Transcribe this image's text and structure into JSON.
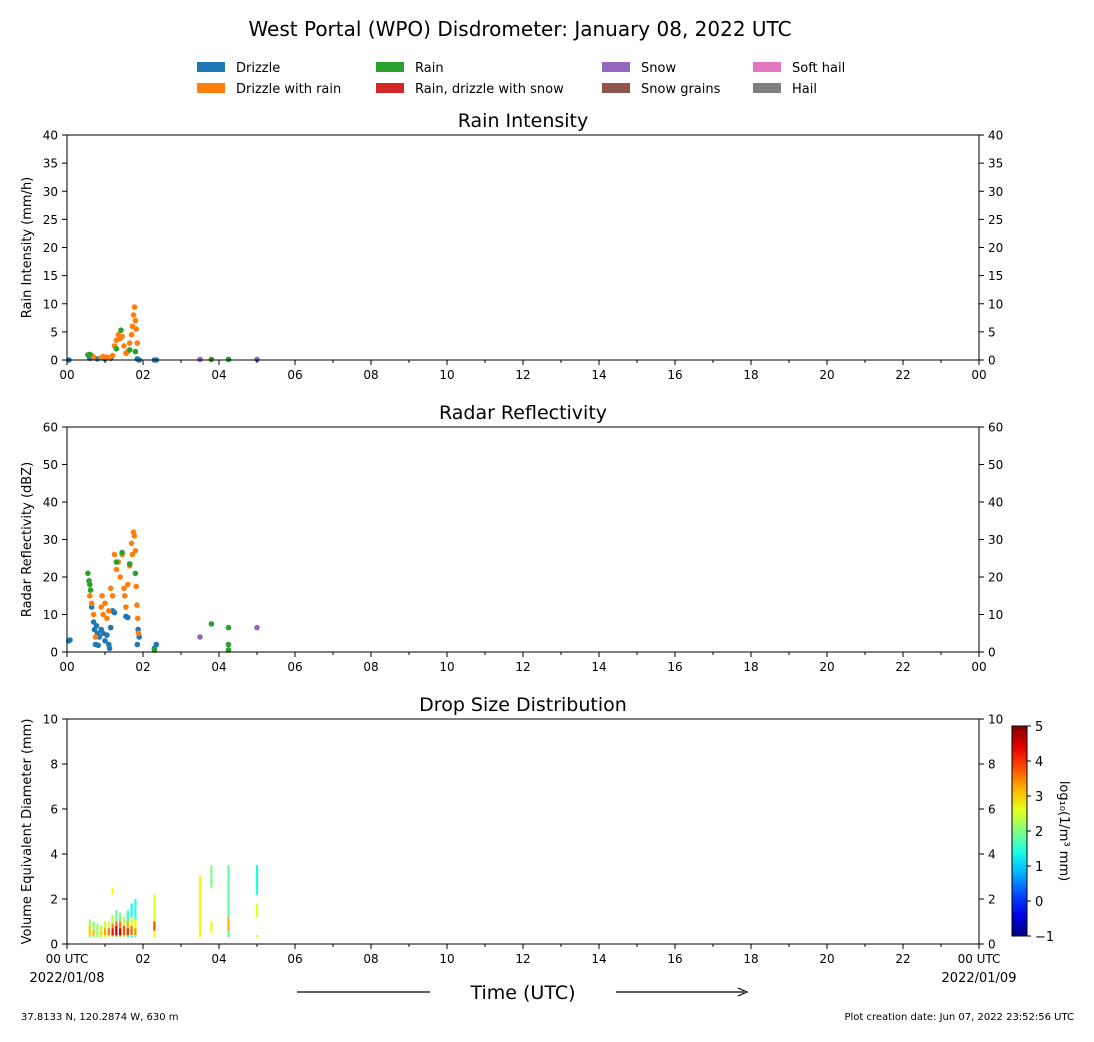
{
  "figure": {
    "title": "West Portal (WPO) Disdrometer: January 08, 2022 UTC",
    "xlabel": "Time (UTC)",
    "footer_left": "37.8133 N, 120.2874 W, 630 m",
    "footer_right": "Plot creation date: Jun 07, 2022 23:52:56 UTC",
    "start_tick": "00 UTC",
    "start_date": "2022/01/08",
    "end_tick": "00 UTC",
    "end_date": "2022/01/09"
  },
  "legend": {
    "placement": "top-center",
    "items": [
      {
        "label": "Drizzle",
        "color": "#1f77b4"
      },
      {
        "label": "Drizzle with rain",
        "color": "#ff7f0e"
      },
      {
        "label": "Rain",
        "color": "#2ca02c"
      },
      {
        "label": "Rain, drizzle with snow",
        "color": "#d62728"
      },
      {
        "label": "Snow",
        "color": "#9467bd"
      },
      {
        "label": "Snow grains",
        "color": "#8c564b"
      },
      {
        "label": "Soft hail",
        "color": "#e377c2"
      },
      {
        "label": "Hail",
        "color": "#7f7f7f"
      }
    ]
  },
  "chart_data": [
    {
      "type": "scatter",
      "title": "Rain Intensity",
      "xlabel": "",
      "ylabel": "Rain Intensity (mm/h)",
      "xlim": [
        0,
        24
      ],
      "ylim": [
        0,
        40
      ],
      "xticks": [
        "00",
        "02",
        "04",
        "06",
        "08",
        "10",
        "12",
        "14",
        "16",
        "18",
        "20",
        "22",
        "00"
      ],
      "yticks": [
        "0",
        "5",
        "10",
        "15",
        "20",
        "25",
        "30",
        "35",
        "40"
      ],
      "grid": false,
      "series": [
        {
          "name": "Drizzle",
          "color": "#1f77b4",
          "points": [
            [
              0.05,
              0
            ],
            [
              0.6,
              0.3
            ],
            [
              0.8,
              0.2
            ],
            [
              1.0,
              0.2
            ],
            [
              1.15,
              0.3
            ],
            [
              1.85,
              0.2
            ],
            [
              1.9,
              0
            ],
            [
              2.3,
              0
            ],
            [
              2.35,
              0
            ]
          ]
        },
        {
          "name": "Drizzle with rain",
          "color": "#ff7f0e",
          "points": [
            [
              0.65,
              0.8
            ],
            [
              0.7,
              0.5
            ],
            [
              0.9,
              0.4
            ],
            [
              0.95,
              0.6
            ],
            [
              1.05,
              0.5
            ],
            [
              1.1,
              0.4
            ],
            [
              1.2,
              0.8
            ],
            [
              1.25,
              2.5
            ],
            [
              1.3,
              3.5
            ],
            [
              1.35,
              4.5
            ],
            [
              1.4,
              3.8
            ],
            [
              1.45,
              4.2
            ],
            [
              1.5,
              2.5
            ],
            [
              1.55,
              1.2
            ],
            [
              1.6,
              1.5
            ],
            [
              1.65,
              3
            ],
            [
              1.7,
              4.5
            ],
            [
              1.72,
              6
            ],
            [
              1.75,
              8
            ],
            [
              1.78,
              9.4
            ],
            [
              1.8,
              7
            ],
            [
              1.82,
              5.5
            ],
            [
              1.85,
              3
            ]
          ]
        },
        {
          "name": "Rain",
          "color": "#2ca02c",
          "points": [
            [
              0.55,
              0.9
            ],
            [
              0.6,
              1.0
            ],
            [
              1.3,
              2.0
            ],
            [
              1.42,
              5.3
            ],
            [
              1.65,
              1.8
            ],
            [
              1.8,
              1.5
            ],
            [
              3.8,
              0.1
            ],
            [
              4.25,
              0.1
            ]
          ]
        },
        {
          "name": "Snow",
          "color": "#9467bd",
          "points": [
            [
              3.5,
              0.1
            ],
            [
              5.0,
              0.1
            ]
          ]
        }
      ]
    },
    {
      "type": "scatter",
      "title": "Radar Reflectivity",
      "xlabel": "",
      "ylabel": "Radar Reflectivity (dBZ)",
      "xlim": [
        0,
        24
      ],
      "ylim": [
        0,
        60
      ],
      "xticks": [
        "00",
        "02",
        "04",
        "06",
        "08",
        "10",
        "12",
        "14",
        "16",
        "18",
        "20",
        "22",
        "00"
      ],
      "yticks": [
        "0",
        "10",
        "20",
        "30",
        "40",
        "50",
        "60"
      ],
      "grid": false,
      "series": [
        {
          "name": "Drizzle",
          "color": "#1f77b4",
          "points": [
            [
              0.05,
              3
            ],
            [
              0.08,
              3.2
            ],
            [
              0.65,
              12
            ],
            [
              0.7,
              8
            ],
            [
              0.72,
              6
            ],
            [
              0.75,
              2
            ],
            [
              0.78,
              7
            ],
            [
              0.8,
              5
            ],
            [
              0.82,
              1.8
            ],
            [
              0.85,
              4
            ],
            [
              0.9,
              6
            ],
            [
              0.95,
              5
            ],
            [
              1.0,
              3
            ],
            [
              1.05,
              4.5
            ],
            [
              1.1,
              2
            ],
            [
              1.12,
              1
            ],
            [
              1.15,
              6.5
            ],
            [
              1.2,
              11
            ],
            [
              1.25,
              10.5
            ],
            [
              1.55,
              9.5
            ],
            [
              1.6,
              9.2
            ],
            [
              1.85,
              2
            ],
            [
              1.87,
              6
            ],
            [
              1.9,
              4
            ],
            [
              2.3,
              1
            ],
            [
              2.35,
              2
            ]
          ]
        },
        {
          "name": "Drizzle with rain",
          "color": "#ff7f0e",
          "points": [
            [
              0.6,
              15
            ],
            [
              0.65,
              13
            ],
            [
              0.7,
              10
            ],
            [
              0.75,
              4
            ],
            [
              0.9,
              12
            ],
            [
              0.92,
              15
            ],
            [
              0.95,
              10
            ],
            [
              1.0,
              13
            ],
            [
              1.05,
              9
            ],
            [
              1.1,
              11
            ],
            [
              1.15,
              17
            ],
            [
              1.2,
              15
            ],
            [
              1.25,
              26
            ],
            [
              1.3,
              22
            ],
            [
              1.35,
              24
            ],
            [
              1.4,
              20
            ],
            [
              1.45,
              26
            ],
            [
              1.5,
              17
            ],
            [
              1.52,
              15
            ],
            [
              1.55,
              12
            ],
            [
              1.6,
              18
            ],
            [
              1.65,
              23
            ],
            [
              1.7,
              29
            ],
            [
              1.72,
              26
            ],
            [
              1.75,
              32
            ],
            [
              1.77,
              31
            ],
            [
              1.8,
              27
            ],
            [
              1.82,
              17.5
            ],
            [
              1.84,
              12.5
            ],
            [
              1.86,
              9
            ],
            [
              1.88,
              5
            ]
          ]
        },
        {
          "name": "Rain",
          "color": "#2ca02c",
          "points": [
            [
              0.55,
              21
            ],
            [
              0.58,
              19
            ],
            [
              0.6,
              18
            ],
            [
              0.62,
              16.5
            ],
            [
              1.3,
              24
            ],
            [
              1.45,
              26.5
            ],
            [
              1.65,
              23.5
            ],
            [
              1.8,
              21
            ],
            [
              2.3,
              0.5
            ],
            [
              3.8,
              7.5
            ],
            [
              4.25,
              6.5
            ],
            [
              4.25,
              2
            ],
            [
              4.25,
              0.5
            ]
          ]
        },
        {
          "name": "Snow",
          "color": "#9467bd",
          "points": [
            [
              3.5,
              4
            ],
            [
              5.0,
              6.5
            ]
          ]
        }
      ]
    },
    {
      "type": "heatmap",
      "title": "Drop Size Distribution",
      "xlabel": "",
      "ylabel": "Volume Equivalent Diameter (mm)",
      "xlim": [
        0,
        24
      ],
      "ylim": [
        0,
        10
      ],
      "xticks": [
        "00 UTC",
        "02",
        "04",
        "06",
        "08",
        "10",
        "12",
        "14",
        "16",
        "18",
        "20",
        "22",
        "00 UTC"
      ],
      "yticks": [
        "0",
        "2",
        "4",
        "6",
        "8",
        "10"
      ],
      "colorbar": {
        "label": "log₁₀(1/m³ mm)",
        "range": [
          -1,
          5
        ],
        "ticks": [
          "−1",
          "0",
          "1",
          "2",
          "3",
          "4",
          "5"
        ],
        "colormap": "jet"
      },
      "columns": [
        {
          "x": 0.6,
          "cells": [
            [
              0.3,
              1.1,
              2.2
            ],
            [
              0.4,
              0.8,
              3.0
            ]
          ]
        },
        {
          "x": 0.7,
          "cells": [
            [
              0.3,
              1.0,
              2.0
            ],
            [
              0.4,
              0.6,
              3.2
            ]
          ]
        },
        {
          "x": 0.8,
          "cells": [
            [
              0.3,
              0.9,
              2.1
            ]
          ]
        },
        {
          "x": 0.9,
          "cells": [
            [
              0.3,
              0.8,
              2.3
            ],
            [
              0.4,
              0.6,
              3.0
            ]
          ]
        },
        {
          "x": 1.0,
          "cells": [
            [
              0.3,
              1.0,
              2.4
            ],
            [
              0.4,
              0.7,
              3.3
            ]
          ]
        },
        {
          "x": 1.1,
          "cells": [
            [
              0.3,
              1.0,
              2.5
            ],
            [
              0.4,
              0.7,
              3.6
            ]
          ]
        },
        {
          "x": 1.2,
          "cells": [
            [
              0.3,
              1.3,
              2.3
            ],
            [
              0.35,
              0.9,
              3.5
            ],
            [
              0.4,
              0.7,
              4.2
            ],
            [
              2.2,
              2.5,
              2.8
            ]
          ]
        },
        {
          "x": 1.3,
          "cells": [
            [
              0.3,
              1.5,
              1.8
            ],
            [
              0.35,
              1.0,
              3.6
            ],
            [
              0.4,
              0.8,
              4.6
            ]
          ]
        },
        {
          "x": 1.4,
          "cells": [
            [
              0.3,
              1.4,
              2.0
            ],
            [
              0.35,
              1.0,
              3.5
            ],
            [
              0.4,
              0.7,
              4.5
            ]
          ]
        },
        {
          "x": 1.5,
          "cells": [
            [
              0.3,
              1.2,
              2.4
            ],
            [
              0.4,
              0.8,
              3.8
            ]
          ]
        },
        {
          "x": 1.6,
          "cells": [
            [
              0.3,
              1.5,
              1.6
            ],
            [
              0.35,
              1.0,
              3.2
            ],
            [
              0.4,
              0.7,
              4.0
            ]
          ]
        },
        {
          "x": 1.7,
          "cells": [
            [
              0.3,
              1.8,
              1.3
            ],
            [
              0.35,
              1.2,
              2.7
            ],
            [
              0.4,
              0.8,
              3.6
            ]
          ]
        },
        {
          "x": 1.8,
          "cells": [
            [
              0.3,
              2.0,
              1.5
            ],
            [
              0.35,
              1.1,
              2.8
            ],
            [
              0.4,
              0.7,
              3.4
            ]
          ]
        },
        {
          "x": 2.3,
          "cells": [
            [
              0.3,
              2.2,
              2.6
            ],
            [
              0.6,
              1.0,
              3.8
            ]
          ]
        },
        {
          "x": 3.5,
          "cells": [
            [
              0.3,
              3.0,
              2.8
            ]
          ]
        },
        {
          "x": 3.8,
          "cells": [
            [
              2.5,
              3.5,
              2.0
            ],
            [
              0.5,
              1.0,
              2.8
            ]
          ]
        },
        {
          "x": 4.25,
          "cells": [
            [
              0.3,
              3.5,
              1.8
            ],
            [
              0.6,
              1.2,
              3.2
            ]
          ]
        },
        {
          "x": 5.0,
          "cells": [
            [
              2.2,
              3.5,
              1.4
            ],
            [
              1.2,
              1.8,
              2.6
            ],
            [
              0.3,
              0.4,
              2.8
            ]
          ]
        }
      ]
    }
  ]
}
